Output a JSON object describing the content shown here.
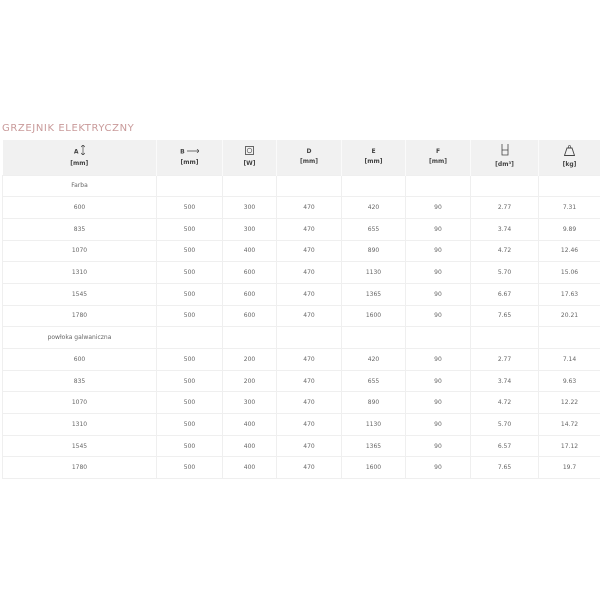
{
  "title": "GRZEJNIK ELEKTRYCZNY",
  "headers": [
    {
      "label": "A",
      "unit": "[mm]",
      "icon": "vertical-arrow-icon"
    },
    {
      "label": "B",
      "unit": "[mm]",
      "icon": "horizontal-arrow-icon"
    },
    {
      "label": "",
      "unit": "[W]",
      "icon": "socket-icon"
    },
    {
      "label": "D",
      "unit": "[mm]",
      "icon": ""
    },
    {
      "label": "E",
      "unit": "[mm]",
      "icon": ""
    },
    {
      "label": "F",
      "unit": "[mm]",
      "icon": ""
    },
    {
      "label": "",
      "unit": "[dm³]",
      "icon": "volume-icon"
    },
    {
      "label": "",
      "unit": "[kg]",
      "icon": "weight-icon"
    }
  ],
  "groups": [
    {
      "name": "Farba",
      "rows": [
        [
          "600",
          "500",
          "300",
          "470",
          "420",
          "90",
          "2.77",
          "7.31"
        ],
        [
          "835",
          "500",
          "300",
          "470",
          "655",
          "90",
          "3.74",
          "9.89"
        ],
        [
          "1070",
          "500",
          "400",
          "470",
          "890",
          "90",
          "4.72",
          "12.46"
        ],
        [
          "1310",
          "500",
          "600",
          "470",
          "1130",
          "90",
          "5.70",
          "15.06"
        ],
        [
          "1545",
          "500",
          "600",
          "470",
          "1365",
          "90",
          "6.67",
          "17.63"
        ],
        [
          "1780",
          "500",
          "600",
          "470",
          "1600",
          "90",
          "7.65",
          "20.21"
        ]
      ]
    },
    {
      "name": "powłoka galwaniczna",
      "rows": [
        [
          "600",
          "500",
          "200",
          "470",
          "420",
          "90",
          "2.77",
          "7.14"
        ],
        [
          "835",
          "500",
          "200",
          "470",
          "655",
          "90",
          "3.74",
          "9.63"
        ],
        [
          "1070",
          "500",
          "300",
          "470",
          "890",
          "90",
          "4.72",
          "12.22"
        ],
        [
          "1310",
          "500",
          "400",
          "470",
          "1130",
          "90",
          "5.70",
          "14.72"
        ],
        [
          "1545",
          "500",
          "400",
          "470",
          "1365",
          "90",
          "6.57",
          "17.12"
        ],
        [
          "1780",
          "500",
          "400",
          "470",
          "1600",
          "90",
          "7.65",
          "19.7"
        ]
      ]
    }
  ]
}
